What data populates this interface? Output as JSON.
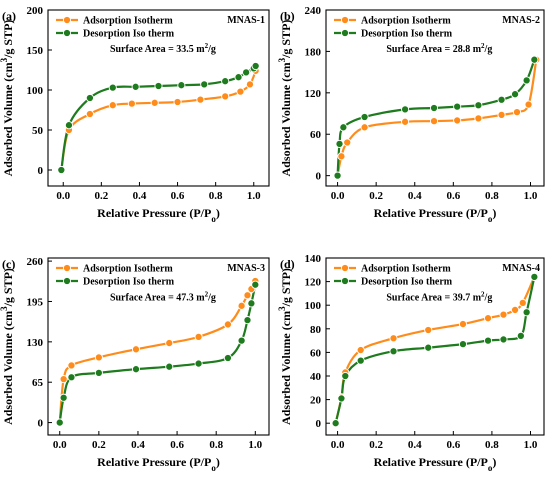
{
  "colors": {
    "adsorption": "#FF8C1A",
    "desorption": "#1E7B1E",
    "axis": "#000000"
  },
  "chart_data": [
    {
      "type": "line",
      "panel": "(a)",
      "sample": "MNAS-1",
      "annotation": "Surface Area = 33.5 m",
      "annotation_sup": "2",
      "annotation_tail": "/g",
      "xlabel": "Relative Pressure (P/P",
      "xlabel_sub": "o",
      "xlabel_tail": ")",
      "ylabel": "Adsorbed Volume (cm",
      "ylabel_sup": "3",
      "ylabel_tail": "/g STP)",
      "xlim": [
        -0.08,
        1.08
      ],
      "ylim": [
        -20,
        200
      ],
      "xticks": [
        {
          "v": 0.0,
          "label": "0.0"
        },
        {
          "v": 0.2,
          "label": "0.2"
        },
        {
          "v": 0.4,
          "label": "0.4"
        },
        {
          "v": 0.6,
          "label": "0.6"
        },
        {
          "v": 0.8,
          "label": "0.8"
        },
        {
          "v": 1.0,
          "label": "1.0"
        }
      ],
      "yticks": [
        {
          "v": 0,
          "label": "0"
        },
        {
          "v": 50,
          "label": "50"
        },
        {
          "v": 100,
          "label": "100"
        },
        {
          "v": 150,
          "label": "150"
        },
        {
          "v": 200,
          "label": "200"
        }
      ],
      "legend_position": "top-left",
      "series": [
        {
          "name": "Adsorption Isotherm",
          "color_key": "adsorption",
          "x": [
            -0.01,
            0.03,
            0.14,
            0.26,
            0.36,
            0.48,
            0.6,
            0.72,
            0.85,
            0.93,
            0.98,
            1.01
          ],
          "y": [
            0,
            50,
            70,
            81,
            83,
            84,
            85,
            88,
            92,
            98,
            107,
            124
          ]
        },
        {
          "name": "Desorption Iso therm",
          "color_key": "desorption",
          "x": [
            -0.01,
            0.03,
            0.14,
            0.26,
            0.38,
            0.5,
            0.62,
            0.74,
            0.85,
            0.92,
            0.96,
            1.0,
            1.01
          ],
          "y": [
            0,
            56,
            90,
            103,
            104,
            105,
            106,
            107,
            111,
            116,
            122,
            127,
            130
          ]
        }
      ]
    },
    {
      "type": "line",
      "panel": "(b)",
      "sample": "MNAS-2",
      "annotation": "Surface Area = 28.8 m",
      "annotation_sup": "2",
      "annotation_tail": "/g",
      "xlabel": "Relative Pressure (P/P",
      "xlabel_sub": "o",
      "xlabel_tail": ")",
      "ylabel": "Adsorbed Volume (cm",
      "ylabel_sup": "3",
      "ylabel_tail": "/g STP)",
      "xlim": [
        -0.06,
        1.07
      ],
      "ylim": [
        -15,
        240
      ],
      "xticks": [
        {
          "v": 0.0,
          "label": "0.0"
        },
        {
          "v": 0.2,
          "label": "0.2"
        },
        {
          "v": 0.4,
          "label": "0.4"
        },
        {
          "v": 0.6,
          "label": "0.6"
        },
        {
          "v": 0.8,
          "label": "0.8"
        },
        {
          "v": 1.0,
          "label": "1.0"
        }
      ],
      "yticks": [
        {
          "v": 0,
          "label": "0"
        },
        {
          "v": 60,
          "label": "60"
        },
        {
          "v": 120,
          "label": "120"
        },
        {
          "v": 180,
          "label": "180"
        },
        {
          "v": 240,
          "label": "240"
        }
      ],
      "legend_position": "top-left",
      "series": [
        {
          "name": "Adsorption Isotherm",
          "color_key": "adsorption",
          "x": [
            0.0,
            0.02,
            0.05,
            0.14,
            0.35,
            0.5,
            0.62,
            0.73,
            0.85,
            0.93,
            0.99,
            1.03
          ],
          "y": [
            0,
            28,
            48,
            70,
            78,
            79,
            80,
            83,
            88,
            92,
            103,
            168
          ]
        },
        {
          "name": "Desorption Iso therm",
          "color_key": "desorption",
          "x": [
            0.0,
            0.01,
            0.03,
            0.14,
            0.35,
            0.5,
            0.62,
            0.73,
            0.85,
            0.92,
            0.98,
            1.02
          ],
          "y": [
            0,
            46,
            70,
            85,
            96,
            98,
            100,
            102,
            110,
            118,
            138,
            168
          ]
        }
      ]
    },
    {
      "type": "line",
      "panel": "(c)",
      "sample": "MNAS-3",
      "annotation": "Surface Area = 47.3 m",
      "annotation_sup": "2",
      "annotation_tail": "/g",
      "xlabel": "Relative Pressure (P/P",
      "xlabel_sub": "o",
      "xlabel_tail": ")",
      "ylabel": "Adsorbed Volume (cm",
      "ylabel_sup": "3",
      "ylabel_tail": "/g STP)",
      "xlim": [
        -0.06,
        1.07
      ],
      "ylim": [
        -20,
        265
      ],
      "xticks": [
        {
          "v": 0.0,
          "label": "0.0"
        },
        {
          "v": 0.2,
          "label": "0.2"
        },
        {
          "v": 0.4,
          "label": "0.4"
        },
        {
          "v": 0.6,
          "label": "0.6"
        },
        {
          "v": 0.8,
          "label": "0.8"
        },
        {
          "v": 1.0,
          "label": "1.0"
        }
      ],
      "yticks": [
        {
          "v": 0,
          "label": "0"
        },
        {
          "v": 65,
          "label": "65"
        },
        {
          "v": 130,
          "label": "130"
        },
        {
          "v": 195,
          "label": "195"
        },
        {
          "v": 260,
          "label": "260"
        }
      ],
      "legend_position": "top-left",
      "series": [
        {
          "name": "Adsorption Isotherm",
          "color_key": "adsorption",
          "x": [
            0.0,
            0.02,
            0.06,
            0.2,
            0.39,
            0.56,
            0.71,
            0.86,
            0.93,
            0.96,
            0.98,
            1.0
          ],
          "y": [
            0,
            70,
            92,
            105,
            118,
            128,
            138,
            158,
            188,
            205,
            215,
            228
          ]
        },
        {
          "name": "Desorption Iso therm",
          "color_key": "desorption",
          "x": [
            0.0,
            0.02,
            0.06,
            0.2,
            0.39,
            0.56,
            0.71,
            0.86,
            0.93,
            0.96,
            0.98,
            1.0
          ],
          "y": [
            0,
            40,
            73,
            80,
            86,
            90,
            95,
            104,
            132,
            165,
            192,
            222
          ]
        }
      ]
    },
    {
      "type": "line",
      "panel": "(d)",
      "sample": "MNAS-4",
      "annotation": "Surface Area = 39.7 m",
      "annotation_sup": "2",
      "annotation_tail": "/g",
      "xlabel": "Relative Pressure (P/P",
      "xlabel_sub": "o",
      "xlabel_tail": ")",
      "ylabel": "Adsorbed Volume (cm",
      "ylabel_sup": "3",
      "ylabel_tail": "/g STP)",
      "xlim": [
        -0.06,
        1.07
      ],
      "ylim": [
        -10,
        140
      ],
      "xticks": [
        {
          "v": 0.0,
          "label": "0.0"
        },
        {
          "v": 0.2,
          "label": "0.2"
        },
        {
          "v": 0.4,
          "label": "0.4"
        },
        {
          "v": 0.6,
          "label": "0.6"
        },
        {
          "v": 0.8,
          "label": "0.8"
        },
        {
          "v": 1.0,
          "label": "1.0"
        }
      ],
      "yticks": [
        {
          "v": 0,
          "label": "0"
        },
        {
          "v": 20,
          "label": "20"
        },
        {
          "v": 40,
          "label": "40"
        },
        {
          "v": 60,
          "label": "60"
        },
        {
          "v": 80,
          "label": "80"
        },
        {
          "v": 100,
          "label": "100"
        },
        {
          "v": 120,
          "label": "120"
        },
        {
          "v": 140,
          "label": "140"
        }
      ],
      "legend_position": "top-left",
      "series": [
        {
          "name": "Adsorption Isotherm",
          "color_key": "adsorption",
          "x": [
            -0.01,
            0.02,
            0.04,
            0.12,
            0.29,
            0.47,
            0.65,
            0.78,
            0.86,
            0.92,
            0.96,
            1.02
          ],
          "y": [
            0,
            22,
            43,
            62,
            72,
            79,
            84,
            89,
            92,
            96,
            102,
            124
          ]
        },
        {
          "name": "Desorption Iso therm",
          "color_key": "desorption",
          "x": [
            -0.01,
            0.02,
            0.04,
            0.12,
            0.29,
            0.47,
            0.65,
            0.78,
            0.86,
            0.95,
            0.98,
            1.02
          ],
          "y": [
            0,
            21,
            40,
            53,
            61,
            64,
            67,
            70,
            71,
            74,
            94,
            124
          ]
        }
      ]
    }
  ]
}
